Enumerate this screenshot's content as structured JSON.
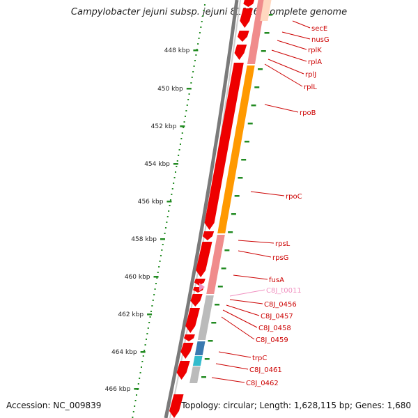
{
  "title": "Campylobacter jejuni subsp. jejuni 81116, complete genome",
  "footer": {
    "accession": "Accession: NC_009839",
    "summary": "Topology: circular; Length: 1,628,115 bp; Genes: 1,680"
  },
  "colors": {
    "cds": "#ee0000",
    "rrna_bar": "#f08c8c",
    "trna": "#f090c0",
    "gc_orange": "#ff9900",
    "gc_gray": "#bbbbbb",
    "gc_blue": "#3a7ab0",
    "gc_cyan": "#33bbcc",
    "tick": "#228b22",
    "label": "#cc0000"
  },
  "scale": {
    "labels": [
      "448 kbp",
      "450 kbp",
      "452 kbp",
      "454 kbp",
      "456 kbp",
      "458 kbp",
      "460 kbp",
      "462 kbp",
      "464 kbp",
      "466 kbp"
    ]
  },
  "genes": [
    {
      "name": "secE"
    },
    {
      "name": "nusG"
    },
    {
      "name": "rplK"
    },
    {
      "name": "rplA"
    },
    {
      "name": "rplJ"
    },
    {
      "name": "rplL"
    },
    {
      "name": "rpoB"
    },
    {
      "name": "rpoC"
    },
    {
      "name": "rpsL"
    },
    {
      "name": "rpsG"
    },
    {
      "name": "fusA"
    },
    {
      "name": "C8J_t0011"
    },
    {
      "name": "C8J_0456"
    },
    {
      "name": "C8J_0457"
    },
    {
      "name": "C8J_0458"
    },
    {
      "name": "C8J_0459"
    },
    {
      "name": "trpC"
    },
    {
      "name": "C8J_0461"
    },
    {
      "name": "C8J_0462"
    }
  ]
}
